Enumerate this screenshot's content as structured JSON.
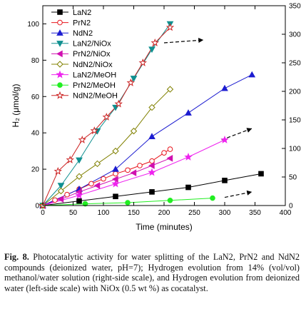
{
  "chart_data": {
    "type": "line",
    "xlabel": "Time (minutes)",
    "ylabel": "H₂ (μmol/g)",
    "xlim": [
      0,
      400
    ],
    "ylim_left": [
      0,
      110
    ],
    "ylim_right": [
      0,
      350
    ],
    "x_ticks": [
      "0",
      "50",
      "100",
      "150",
      "200",
      "250",
      "300",
      "350",
      "400"
    ],
    "y_left_ticks": [
      "0",
      "20",
      "40",
      "60",
      "80",
      "100"
    ],
    "y_right_ticks": [
      "0",
      "50",
      "100",
      "150",
      "200",
      "250",
      "300",
      "350"
    ],
    "legend_position": "top-left",
    "grid": false,
    "series": [
      {
        "name": "LaN2",
        "axis": "left",
        "color": "#000000",
        "marker": "square",
        "filled": true,
        "x": [
          0,
          60,
          120,
          180,
          240,
          300,
          360
        ],
        "y": [
          0,
          2.5,
          5,
          7.5,
          10,
          13.8,
          17.5
        ]
      },
      {
        "name": "PrN2",
        "axis": "left",
        "color": "#e8141c",
        "marker": "circle",
        "filled": false,
        "x": [
          0,
          20,
          40,
          60,
          80,
          100,
          120,
          140,
          160,
          180,
          200,
          210
        ],
        "y": [
          0,
          3,
          6,
          9,
          12,
          14.7,
          17.5,
          19.5,
          22,
          24.5,
          29,
          31
        ]
      },
      {
        "name": "NdN2",
        "axis": "left",
        "color": "#1c1cd0",
        "marker": "triangle-up",
        "filled": true,
        "x": [
          0,
          60,
          120,
          180,
          240,
          300,
          345
        ],
        "y": [
          0,
          9,
          20,
          38,
          51,
          64.5,
          72
        ]
      },
      {
        "name": "LaN2/NiOx",
        "axis": "left",
        "color": "#109090",
        "marker": "triangle-down",
        "filled": true,
        "x": [
          0,
          30,
          60,
          90,
          120,
          150,
          180,
          210
        ],
        "y": [
          0,
          11,
          25,
          41,
          54,
          70,
          86,
          100
        ]
      },
      {
        "name": "PrN2/NiOx",
        "axis": "left",
        "color": "#d010b0",
        "marker": "triangle-left",
        "filled": true,
        "x": [
          0,
          30,
          60,
          90,
          120,
          150,
          180,
          210
        ],
        "y": [
          0,
          3.5,
          7.5,
          11,
          14.5,
          18,
          22,
          26
        ]
      },
      {
        "name": "NdN2/NiOx",
        "axis": "left",
        "color": "#808000",
        "marker": "diamond",
        "filled": false,
        "x": [
          0,
          30,
          60,
          90,
          120,
          150,
          180,
          210
        ],
        "y": [
          0,
          8,
          16,
          23,
          30,
          41,
          54,
          64
        ]
      },
      {
        "name": "LaN2/MeOH",
        "axis": "right",
        "color": "#ee22ee",
        "marker": "star",
        "filled": true,
        "x": [
          0,
          60,
          120,
          180,
          240,
          300
        ],
        "y": [
          0,
          18,
          38,
          58,
          85,
          115
        ]
      },
      {
        "name": "PrN2/MeOH",
        "axis": "right",
        "color": "#22ee22",
        "marker": "circle",
        "filled": true,
        "x": [
          0,
          70,
          140,
          210,
          280
        ],
        "y": [
          0,
          3,
          5,
          9,
          13
        ]
      },
      {
        "name": "NdN2/MeOH",
        "axis": "right",
        "color": "#cc2222",
        "marker": "star",
        "filled": false,
        "x": [
          0,
          25,
          45,
          65,
          85,
          105,
          125,
          145,
          165,
          185,
          210
        ],
        "y": [
          0,
          60,
          80,
          115,
          131,
          155,
          178,
          215,
          250,
          285,
          312
        ]
      }
    ],
    "trend_arrows": [
      {
        "axis": "right",
        "from": [
          200,
          285
        ],
        "to": [
          265,
          290
        ]
      },
      {
        "axis": "right",
        "from": [
          295,
          115
        ],
        "to": [
          345,
          135
        ]
      },
      {
        "axis": "left",
        "from": [
          300,
          4.5
        ],
        "to": [
          345,
          7.5
        ]
      }
    ]
  },
  "caption": {
    "label": "Fig. 8.",
    "text": " Photocatalytic activity for water splitting of the LaN2, PrN2 and NdN2 compounds (deionized water, pH=7); Hydrogen evolution from 14% (vol/vol) methanol/water solution (right-side scale), and Hydrogen evolution from deionized water (left-side scale) with NiOx (0.5 wt %) as cocatalyst."
  }
}
